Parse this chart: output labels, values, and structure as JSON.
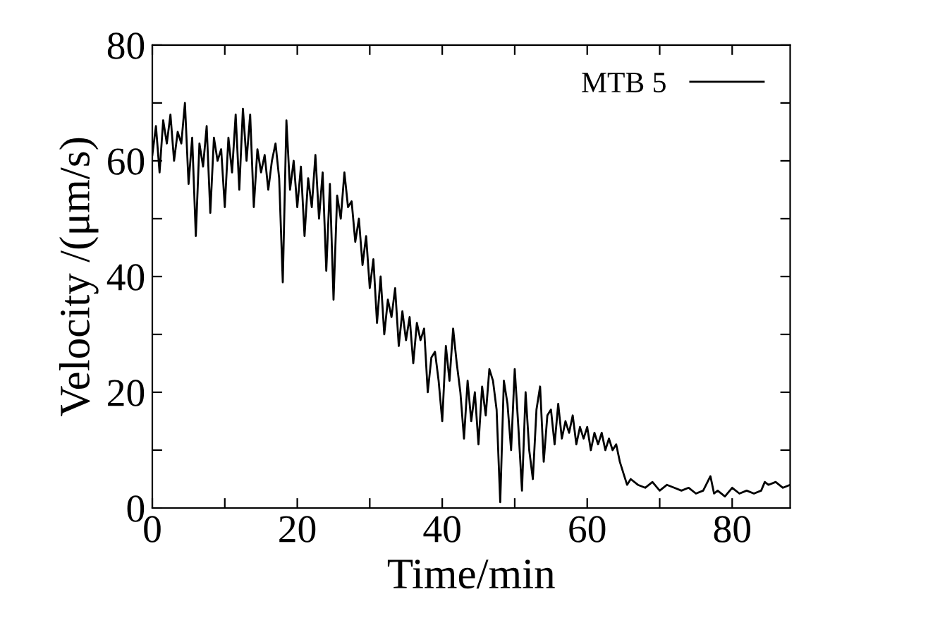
{
  "chart_data": {
    "type": "line",
    "xlabel": "Time/min",
    "ylabel": "Velocity /(μm/s)",
    "xlim": [
      0,
      88
    ],
    "ylim": [
      0,
      80
    ],
    "xticks": [
      0,
      {
        "value": 10,
        "label": null
      },
      20,
      {
        "value": 30,
        "label": null
      },
      40,
      {
        "value": 50,
        "label": null
      },
      60,
      {
        "value": 70,
        "label": null
      },
      80
    ],
    "yticks": [
      0,
      {
        "value": 10,
        "label": null
      },
      20,
      {
        "value": 30,
        "label": null
      },
      40,
      {
        "value": 50,
        "label": null
      },
      60,
      {
        "value": 70,
        "label": null
      },
      80
    ],
    "legend": "top right",
    "grid": false,
    "series": [
      {
        "name": "MTB 5",
        "color": "#000000",
        "x": [
          0,
          0.5,
          1,
          1.5,
          2,
          2.5,
          3,
          3.5,
          4,
          4.5,
          5,
          5.5,
          6,
          6.5,
          7,
          7.5,
          8,
          8.5,
          9,
          9.5,
          10,
          10.5,
          11,
          11.5,
          12,
          12.5,
          13,
          13.5,
          14,
          14.5,
          15,
          15.5,
          16,
          16.5,
          17,
          17.5,
          18,
          18.5,
          19,
          19.5,
          20,
          20.5,
          21,
          21.5,
          22,
          22.5,
          23,
          23.5,
          24,
          24.5,
          25,
          25.5,
          26,
          26.5,
          27,
          27.5,
          28,
          28.5,
          29,
          29.5,
          30,
          30.5,
          31,
          31.5,
          32,
          32.5,
          33,
          33.5,
          34,
          34.5,
          35,
          35.5,
          36,
          36.5,
          37,
          37.5,
          38,
          38.5,
          39,
          39.5,
          40,
          40.5,
          41,
          41.5,
          42,
          42.5,
          43,
          43.5,
          44,
          44.5,
          45,
          45.5,
          46,
          46.5,
          47,
          47.5,
          48,
          48.5,
          49,
          49.5,
          50,
          50.5,
          51,
          51.5,
          52,
          52.5,
          53,
          53.5,
          54,
          54.5,
          55,
          55.5,
          56,
          56.5,
          57,
          57.5,
          58,
          58.5,
          59,
          59.5,
          60,
          60.5,
          61,
          61.5,
          62,
          62.5,
          63,
          63.5,
          64,
          64.5,
          65,
          65.5,
          66,
          67,
          68,
          69,
          70,
          71,
          72,
          73,
          74,
          75,
          76,
          77,
          77.5,
          78,
          79,
          80,
          81,
          82,
          83,
          84,
          84.5,
          85,
          86,
          87,
          88
        ],
        "values": [
          61,
          66,
          58,
          67,
          63,
          68,
          60,
          65,
          63,
          70,
          56,
          64,
          47,
          63,
          59,
          66,
          51,
          64,
          60,
          62,
          52,
          64,
          58,
          68,
          55,
          69,
          60,
          68,
          52,
          62,
          58,
          61,
          55,
          60,
          63,
          57,
          39,
          67,
          55,
          60,
          52,
          59,
          47,
          57,
          52,
          61,
          50,
          58,
          41,
          56,
          36,
          54,
          50,
          58,
          52,
          53,
          46,
          50,
          42,
          47,
          38,
          43,
          32,
          40,
          30,
          36,
          33,
          38,
          28,
          34,
          29,
          33,
          25,
          32,
          29,
          31,
          20,
          26,
          27,
          22,
          15,
          28,
          22,
          31,
          25,
          20,
          12,
          22,
          15,
          20,
          11,
          21,
          16,
          24,
          22,
          17,
          1,
          22,
          18,
          10,
          24,
          14,
          3,
          20,
          10,
          5,
          17,
          21,
          8,
          16,
          17,
          11,
          18,
          12,
          15,
          13,
          16,
          11,
          14,
          12,
          14,
          10,
          13,
          11,
          13,
          10,
          12,
          10,
          11,
          8,
          6,
          4,
          5,
          4,
          3.5,
          4.5,
          3,
          4,
          3.5,
          3,
          3.5,
          2.5,
          3,
          5.5,
          2.5,
          3,
          2,
          3.5,
          2.5,
          3,
          2.5,
          3,
          4.5,
          4,
          4.5,
          3.5,
          4
        ]
      }
    ]
  }
}
